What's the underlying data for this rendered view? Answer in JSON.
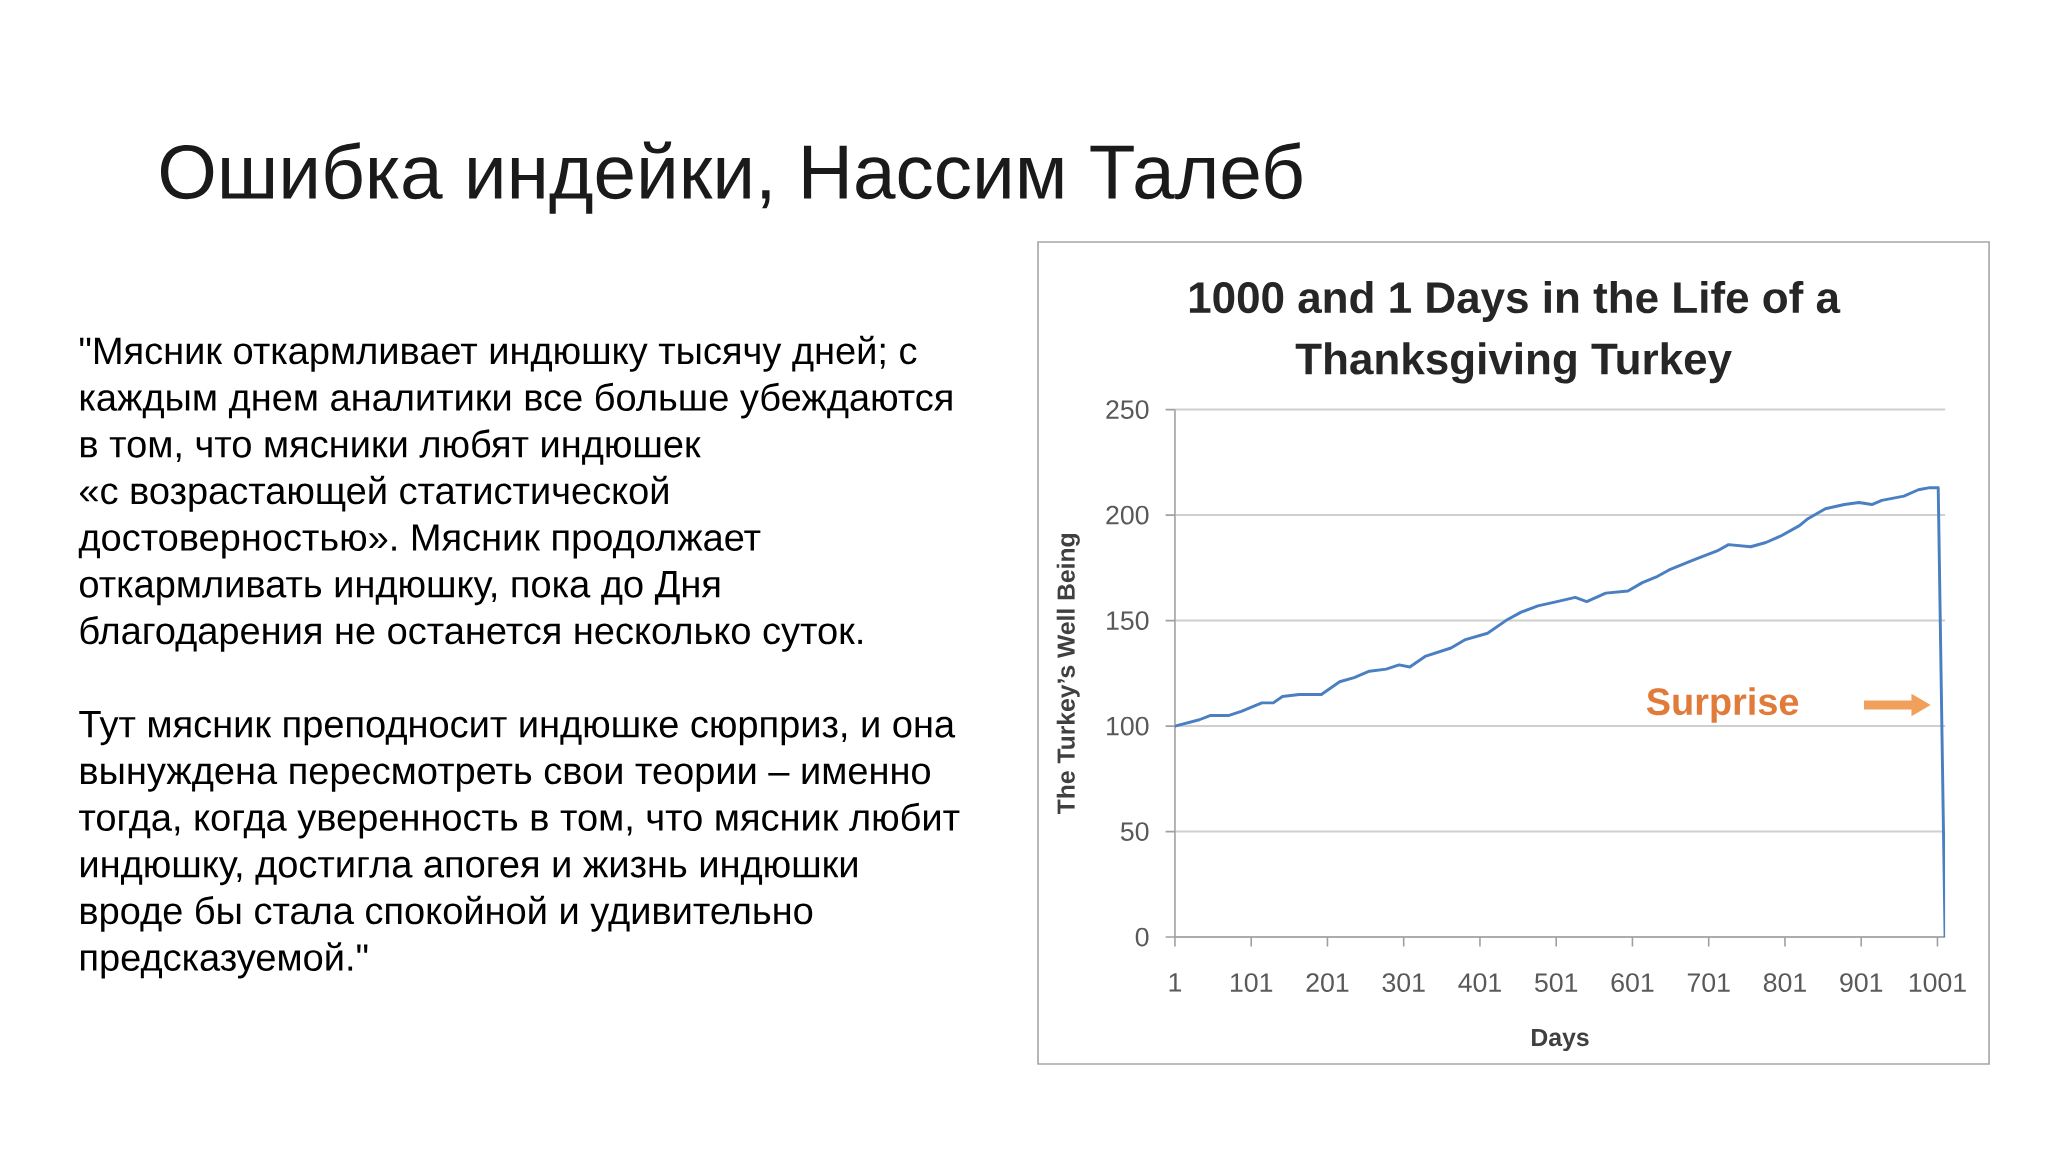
{
  "chart_data": {
    "type": "line",
    "title": "1000 and 1 Days in the Life of a\nThanksgiving Turkey",
    "xlabel": "Days",
    "ylabel": "The Turkey’s Well Being",
    "x": [
      1,
      33,
      47,
      71,
      88,
      115,
      130,
      142,
      164,
      193,
      217,
      236,
      256,
      278,
      295,
      309,
      329,
      363,
      382,
      411,
      435,
      455,
      477,
      502,
      526,
      541,
      566,
      595,
      614,
      634,
      649,
      683,
      712,
      727,
      756,
      776,
      795,
      820,
      830,
      854,
      879,
      898,
      915,
      928,
      957,
      976,
      991,
      1002,
      1011
    ],
    "series": [
      {
        "color": "#4a7fc1",
        "values": [
          100,
          103,
          105,
          105,
          107,
          111,
          111,
          114,
          115,
          115,
          121,
          123,
          126,
          127,
          129,
          128,
          133,
          137,
          141,
          144,
          150,
          154,
          157,
          159,
          161,
          159,
          163,
          164,
          168,
          171,
          174,
          179,
          183,
          186,
          185,
          187,
          190,
          195,
          198,
          203,
          205,
          206,
          205,
          207,
          209,
          212,
          213,
          213,
          0
        ]
      }
    ],
    "xlim": [
      1,
      1011
    ],
    "xticks": [
      1,
      101,
      201,
      301,
      401,
      501,
      601,
      701,
      801,
      901,
      1001
    ],
    "ylim": [
      0,
      250
    ],
    "yticks": [
      0,
      50,
      100,
      150,
      200,
      250
    ],
    "grid": "y",
    "legend": false,
    "marker": "none",
    "line_style": "solid",
    "annotations": [
      "Ошибка индейки, Нассим Талеб",
      "\"Мясник откармливает индюшку тысячу дней; с\nкаждым днем аналитики все больше убеждаются\nв том, что мясники любят индюшек\n«с возрастающей статистической\nдостоверностью». Мясник продолжает\nоткармливать индюшку, пока до Дня\nблагодарения не останется несколько суток.",
      "Тут мясник преподносит индюшке сюрприз, и она\nвынуждена пересмотреть свои теории – именно\nтогда, когда уверенность в том, что мясник любит\nиндюшку, достигла апогея и жизнь индюшки\nвроде бы стала спокойной и удивительно\nпредсказуемой.\"",
      "Surprise"
    ]
  }
}
